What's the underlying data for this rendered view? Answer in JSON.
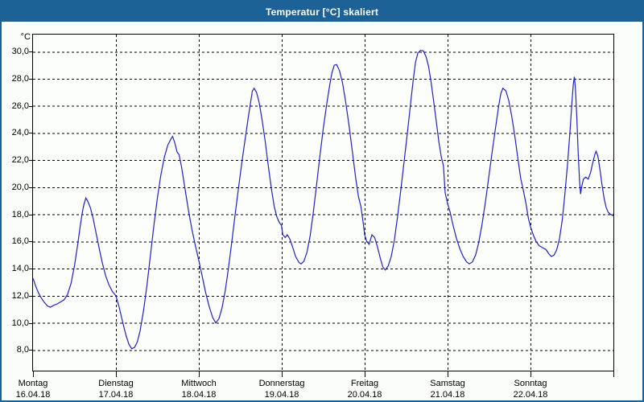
{
  "window": {
    "title": "Temperatur [°C] skaliert"
  },
  "colors": {
    "titlebar": "#1d6296",
    "window_border": "#1d6296",
    "line": "#2121c4",
    "grid": "#000000",
    "background": "#fbfdfa"
  },
  "chart_data": {
    "type": "line",
    "title": "Temperatur [°C] skaliert",
    "y_unit_label": "°C",
    "ylabel": "Temperatur [°C]",
    "xlabel": "",
    "grid": true,
    "legend_position": "none",
    "ylim": [
      6.48,
      31.26
    ],
    "yticks": [
      8,
      10,
      12,
      14,
      16,
      18,
      20,
      22,
      24,
      26,
      28,
      30
    ],
    "ytick_labels": [
      "8,0",
      "10,0",
      "12,0",
      "14,0",
      "16,0",
      "18,0",
      "20,0",
      "22,0",
      "24,0",
      "26,0",
      "28,0",
      "30,0"
    ],
    "x_hours_total": 168,
    "hours_per_day": 24,
    "x_days": [
      {
        "name": "Montag",
        "date": "16.04.18"
      },
      {
        "name": "Dienstag",
        "date": "17.04.18"
      },
      {
        "name": "Mittwoch",
        "date": "18.04.18"
      },
      {
        "name": "Donnerstag",
        "date": "19.04.18"
      },
      {
        "name": "Freitag",
        "date": "20.04.18"
      },
      {
        "name": "Samstag",
        "date": "21.04.18"
      },
      {
        "name": "Sonntag",
        "date": "22.04.18"
      }
    ],
    "series": [
      {
        "name": "Temperatur",
        "unit": "°C",
        "color": "#2121c4",
        "points": [
          [
            0,
            13.3
          ],
          [
            0.8,
            12.7
          ],
          [
            1.6,
            12.2
          ],
          [
            2.5,
            11.8
          ],
          [
            3.3,
            11.5
          ],
          [
            4.2,
            11.25
          ],
          [
            5,
            11.15
          ],
          [
            6,
            11.3
          ],
          [
            7,
            11.4
          ],
          [
            8,
            11.55
          ],
          [
            9,
            11.7
          ],
          [
            10,
            12.1
          ],
          [
            11,
            12.9
          ],
          [
            12,
            14.2
          ],
          [
            13,
            15.9
          ],
          [
            13.7,
            17.2
          ],
          [
            14.3,
            18.2
          ],
          [
            14.8,
            18.8
          ],
          [
            15.3,
            19.2
          ],
          [
            15.9,
            18.95
          ],
          [
            16.6,
            18.5
          ],
          [
            17.4,
            17.7
          ],
          [
            18.2,
            16.7
          ],
          [
            19,
            15.7
          ],
          [
            20,
            14.5
          ],
          [
            21,
            13.5
          ],
          [
            22,
            12.8
          ],
          [
            23,
            12.3
          ],
          [
            24,
            12.0
          ],
          [
            25,
            11.1
          ],
          [
            26,
            10.0
          ],
          [
            27,
            9.0
          ],
          [
            27.8,
            8.4
          ],
          [
            28.6,
            8.1
          ],
          [
            29.4,
            8.2
          ],
          [
            30.2,
            8.6
          ],
          [
            31,
            9.4
          ],
          [
            32,
            10.9
          ],
          [
            33,
            12.8
          ],
          [
            34,
            15.0
          ],
          [
            35,
            17.2
          ],
          [
            36,
            19.2
          ],
          [
            37,
            20.9
          ],
          [
            38,
            22.2
          ],
          [
            39,
            23.1
          ],
          [
            40,
            23.6
          ],
          [
            40.4,
            23.75
          ],
          [
            41,
            23.3
          ],
          [
            41.7,
            22.6
          ],
          [
            42.3,
            22.4
          ],
          [
            43,
            21.5
          ],
          [
            44,
            19.9
          ],
          [
            45,
            18.3
          ],
          [
            46,
            16.9
          ],
          [
            47,
            15.7
          ],
          [
            48,
            14.6
          ],
          [
            49,
            13.4
          ],
          [
            50,
            12.2
          ],
          [
            51,
            11.2
          ],
          [
            52,
            10.4
          ],
          [
            52.9,
            10.0
          ],
          [
            53.8,
            10.3
          ],
          [
            54.7,
            11.1
          ],
          [
            55.6,
            12.3
          ],
          [
            56.5,
            13.9
          ],
          [
            57.5,
            15.9
          ],
          [
            58.5,
            18.0
          ],
          [
            59.5,
            20.0
          ],
          [
            60.5,
            21.9
          ],
          [
            61.5,
            23.7
          ],
          [
            62.4,
            25.3
          ],
          [
            63,
            26.3
          ],
          [
            63.5,
            27.1
          ],
          [
            64,
            27.3
          ],
          [
            64.7,
            27.0
          ],
          [
            65.5,
            26.2
          ],
          [
            66.3,
            25.0
          ],
          [
            67.2,
            23.4
          ],
          [
            68,
            21.8
          ],
          [
            69,
            19.9
          ],
          [
            69.8,
            18.6
          ],
          [
            70.6,
            17.8
          ],
          [
            71.3,
            17.4
          ],
          [
            71.9,
            17.2
          ],
          [
            72.3,
            16.5
          ],
          [
            73,
            16.3
          ],
          [
            73.6,
            16.5
          ],
          [
            74.3,
            16.2
          ],
          [
            75,
            15.7
          ],
          [
            76,
            14.9
          ],
          [
            77,
            14.45
          ],
          [
            77.6,
            14.35
          ],
          [
            78.4,
            14.55
          ],
          [
            79.3,
            15.2
          ],
          [
            80.2,
            16.4
          ],
          [
            81.1,
            18.1
          ],
          [
            82,
            20.0
          ],
          [
            83,
            22.2
          ],
          [
            84,
            24.3
          ],
          [
            85,
            26.1
          ],
          [
            85.8,
            27.4
          ],
          [
            86.5,
            28.4
          ],
          [
            87.2,
            29.0
          ],
          [
            87.9,
            29.05
          ],
          [
            88.7,
            28.6
          ],
          [
            89.6,
            27.7
          ],
          [
            90.5,
            26.3
          ],
          [
            91.5,
            24.5
          ],
          [
            92.5,
            22.5
          ],
          [
            93.4,
            20.7
          ],
          [
            94.2,
            19.3
          ],
          [
            94.9,
            18.6
          ],
          [
            95.5,
            17.5
          ],
          [
            96,
            16.5
          ],
          [
            96.6,
            16.0
          ],
          [
            97.3,
            15.8
          ],
          [
            98.1,
            16.5
          ],
          [
            98.9,
            16.3
          ],
          [
            99.7,
            15.6
          ],
          [
            100.5,
            14.8
          ],
          [
            101.3,
            14.1
          ],
          [
            102,
            13.9
          ],
          [
            102.8,
            14.2
          ],
          [
            103.7,
            14.9
          ],
          [
            104.6,
            16.1
          ],
          [
            105.5,
            17.8
          ],
          [
            106.5,
            19.9
          ],
          [
            107.5,
            22.1
          ],
          [
            108.5,
            24.3
          ],
          [
            109.3,
            26.2
          ],
          [
            110,
            27.8
          ],
          [
            110.7,
            29.2
          ],
          [
            111.4,
            29.9
          ],
          [
            112.2,
            30.1
          ],
          [
            113,
            30.05
          ],
          [
            113.8,
            29.6
          ],
          [
            114.5,
            28.9
          ],
          [
            115.2,
            27.8
          ],
          [
            116,
            26.3
          ],
          [
            116.8,
            24.7
          ],
          [
            117.5,
            23.3
          ],
          [
            118.2,
            22.2
          ],
          [
            118.8,
            21.6
          ],
          [
            119.3,
            19.6
          ],
          [
            120,
            18.8
          ],
          [
            120.7,
            18.2
          ],
          [
            121.5,
            17.3
          ],
          [
            122.5,
            16.3
          ],
          [
            123.5,
            15.5
          ],
          [
            124.5,
            14.9
          ],
          [
            125.5,
            14.5
          ],
          [
            126.3,
            14.35
          ],
          [
            127.2,
            14.5
          ],
          [
            128.1,
            15.0
          ],
          [
            129,
            15.9
          ],
          [
            130,
            17.3
          ],
          [
            131,
            19.0
          ],
          [
            132,
            20.9
          ],
          [
            133,
            22.8
          ],
          [
            134,
            24.6
          ],
          [
            134.8,
            26.0
          ],
          [
            135.4,
            26.9
          ],
          [
            136,
            27.3
          ],
          [
            136.9,
            27.1
          ],
          [
            137.7,
            26.4
          ],
          [
            138.6,
            25.2
          ],
          [
            139.5,
            23.7
          ],
          [
            140.4,
            22.0
          ],
          [
            141.2,
            20.6
          ],
          [
            141.9,
            19.8
          ],
          [
            142.7,
            18.8
          ],
          [
            143.4,
            17.7
          ],
          [
            144,
            17.1
          ],
          [
            144.8,
            16.5
          ],
          [
            145.6,
            16.0
          ],
          [
            146.5,
            15.7
          ],
          [
            147.5,
            15.55
          ],
          [
            148.5,
            15.4
          ],
          [
            149.3,
            15.1
          ],
          [
            150,
            14.9
          ],
          [
            150.8,
            15.0
          ],
          [
            151.6,
            15.4
          ],
          [
            152.4,
            16.2
          ],
          [
            153.2,
            17.6
          ],
          [
            154,
            19.6
          ],
          [
            154.8,
            22.0
          ],
          [
            155.5,
            24.4
          ],
          [
            156,
            26.3
          ],
          [
            156.4,
            27.6
          ],
          [
            156.7,
            28.15
          ],
          [
            157,
            27.3
          ],
          [
            157.4,
            25.2
          ],
          [
            157.8,
            22.6
          ],
          [
            158.2,
            20.5
          ],
          [
            158.5,
            19.5
          ],
          [
            158.8,
            20.0
          ],
          [
            159.3,
            20.6
          ],
          [
            160,
            20.75
          ],
          [
            160.7,
            20.6
          ],
          [
            161.4,
            21.1
          ],
          [
            162,
            21.8
          ],
          [
            162.6,
            22.4
          ],
          [
            163,
            22.65
          ],
          [
            163.5,
            22.3
          ],
          [
            164.1,
            21.3
          ],
          [
            164.7,
            20.2
          ],
          [
            165.3,
            19.2
          ],
          [
            165.9,
            18.5
          ],
          [
            166.5,
            18.15
          ],
          [
            167.2,
            18.0
          ],
          [
            168,
            17.9
          ]
        ]
      }
    ]
  }
}
